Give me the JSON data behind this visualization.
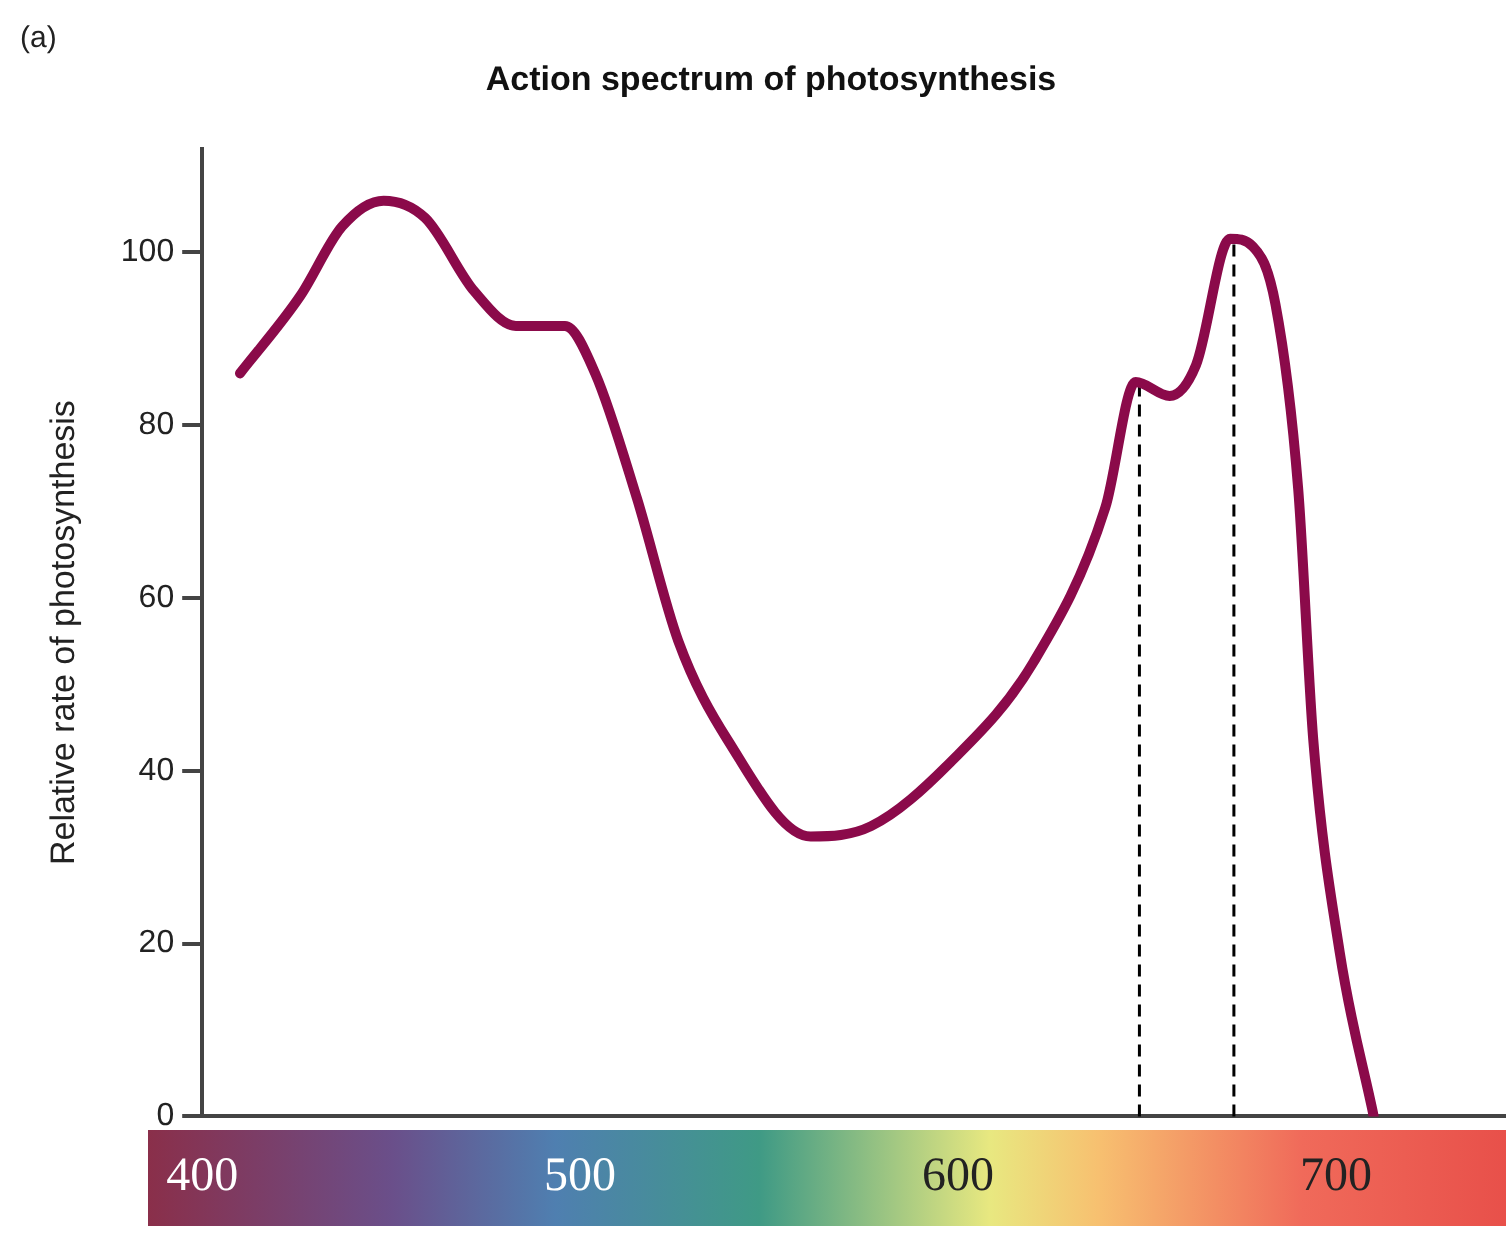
{
  "chart_data": {
    "type": "line",
    "title": "Action spectrum of photosynthesis",
    "ylabel": "Relative rate of photosynthesis",
    "annotations": [
      "(a)"
    ],
    "x": [
      410,
      426,
      437,
      448,
      459,
      472,
      483,
      496,
      504,
      515,
      526,
      539,
      561,
      577,
      598,
      620,
      639,
      647,
      656,
      663,
      672,
      678,
      684,
      690,
      694,
      701,
      710
    ],
    "series": [
      {
        "color": "#8b0a4a",
        "values": [
          86,
          95,
          103,
          106,
          104,
          95.5,
          91.5,
          91.5,
          86,
          71.6,
          55,
          43.6,
          32.4,
          33.6,
          41,
          52.6,
          70.5,
          85,
          83.4,
          87,
          101.6,
          100.7,
          94,
          72.7,
          43.6,
          19,
          0
        ]
      }
    ],
    "xlim": [
      400,
      745
    ],
    "xticks": [
      400,
      500,
      600,
      700
    ],
    "ylim": [
      0,
      112
    ],
    "yticks": [
      0,
      20,
      40,
      60,
      80,
      100
    ],
    "ref_lines": [
      {
        "axis": "x",
        "value": 648,
        "color": "#000000",
        "line_style": "dashed"
      },
      {
        "axis": "x",
        "value": 673,
        "color": "#000000",
        "line_style": "dashed"
      }
    ],
    "grid": false,
    "legend": false,
    "marker": "none",
    "line_style": "solid"
  }
}
